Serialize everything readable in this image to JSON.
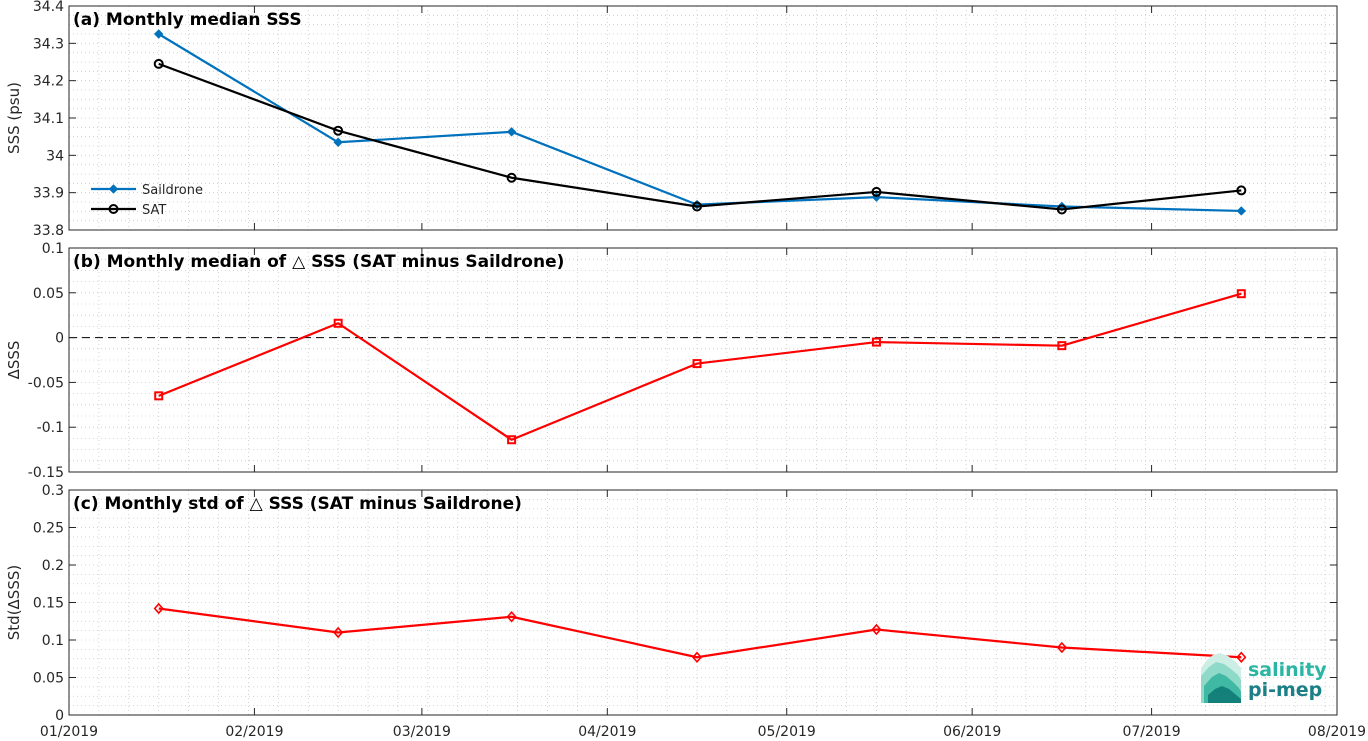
{
  "chart_data": [
    {
      "type": "line",
      "title": "(a) Monthly median SSS",
      "xlabel": "",
      "ylabel": "SSS (psu)",
      "xlim": [
        "2019-01-01",
        "2019-08-01"
      ],
      "ylim": [
        33.8,
        34.4
      ],
      "yticks": [
        33.8,
        33.9,
        34,
        34.1,
        34.2,
        34.3,
        34.4
      ],
      "ytick_labels": [
        "33.8",
        "33.9",
        "34",
        "34.1",
        "34.2",
        "34.3",
        "34.4"
      ],
      "grid": true,
      "legend_position": "lower-left",
      "x": [
        "2019-01-16",
        "2019-02-15",
        "2019-03-16",
        "2019-04-16",
        "2019-05-16",
        "2019-06-16",
        "2019-07-16"
      ],
      "series": [
        {
          "name": "Saildrone",
          "color": "#0072BD",
          "marker": "diamond-filled",
          "values": [
            34.325,
            34.035,
            34.063,
            33.868,
            33.888,
            33.863,
            33.851
          ]
        },
        {
          "name": "SAT",
          "color": "#000000",
          "marker": "circle-open",
          "values": [
            34.245,
            34.066,
            33.94,
            33.863,
            33.902,
            33.855,
            33.906
          ]
        }
      ]
    },
    {
      "type": "line",
      "title": "(b) Monthly median of △ SSS (SAT minus Saildrone)",
      "xlabel": "",
      "ylabel": "ΔSSS",
      "xlim": [
        "2019-01-01",
        "2019-08-01"
      ],
      "ylim": [
        -0.15,
        0.1
      ],
      "yticks": [
        -0.15,
        -0.1,
        -0.05,
        0,
        0.05,
        0.1
      ],
      "ytick_labels": [
        "-0.15",
        "-0.1",
        "-0.05",
        "0",
        "0.05",
        "0.1"
      ],
      "grid": true,
      "reference_line": 0,
      "x": [
        "2019-01-16",
        "2019-02-15",
        "2019-03-16",
        "2019-04-16",
        "2019-05-16",
        "2019-06-16",
        "2019-07-16"
      ],
      "series": [
        {
          "color": "#FF0000",
          "marker": "square-open",
          "values": [
            -0.065,
            0.016,
            -0.114,
            -0.029,
            -0.005,
            -0.009,
            0.049
          ]
        }
      ]
    },
    {
      "type": "line",
      "title": "(c) Monthly std of △ SSS (SAT minus Saildrone)",
      "xlabel": "",
      "ylabel": "Std(ΔSSS)",
      "xlim": [
        "2019-01-01",
        "2019-08-01"
      ],
      "ylim": [
        0,
        0.3
      ],
      "yticks": [
        0,
        0.05,
        0.1,
        0.15,
        0.2,
        0.25,
        0.3
      ],
      "ytick_labels": [
        "0",
        "0.05",
        "0.1",
        "0.15",
        "0.2",
        "0.25",
        "0.3"
      ],
      "xticks": [
        "2019-01-01",
        "2019-02-01",
        "2019-03-01",
        "2019-04-01",
        "2019-05-01",
        "2019-06-01",
        "2019-07-01",
        "2019-08-01"
      ],
      "xtick_labels": [
        "01/2019",
        "02/2019",
        "03/2019",
        "04/2019",
        "05/2019",
        "06/2019",
        "07/2019",
        "08/2019"
      ],
      "grid": true,
      "x": [
        "2019-01-16",
        "2019-02-15",
        "2019-03-16",
        "2019-04-16",
        "2019-05-16",
        "2019-06-16",
        "2019-07-16"
      ],
      "series": [
        {
          "color": "#FF0000",
          "marker": "diamond-open",
          "values": [
            0.142,
            0.11,
            0.131,
            0.077,
            0.114,
            0.09,
            0.077
          ]
        }
      ]
    }
  ],
  "logo": {
    "line1": "salinity",
    "line2": "pi-mep"
  }
}
